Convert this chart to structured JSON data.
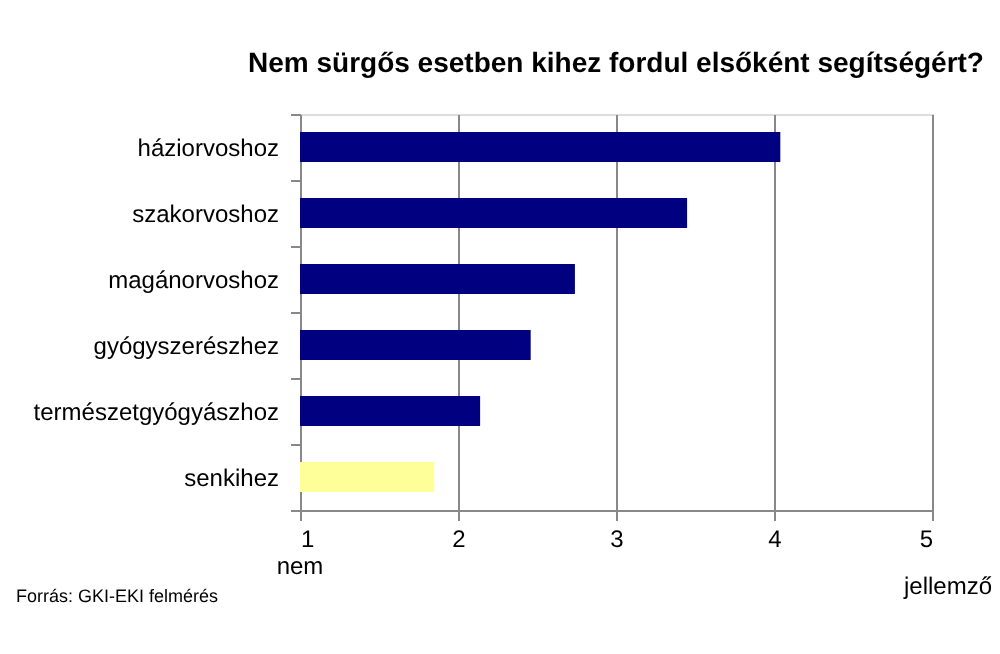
{
  "chart_data": {
    "type": "bar",
    "orientation": "horizontal",
    "title": "Nem sürgős esetben kihez fordul elsőként segítségért?",
    "categories": [
      "háziorvoshoz",
      "szakorvoshoz",
      "magánorvoshoz",
      "gyógyszerészhez",
      "természetgyógyászhoz",
      "senkihez"
    ],
    "values": [
      4.04,
      3.45,
      2.74,
      2.46,
      2.14,
      1.85
    ],
    "colors": [
      "#000080",
      "#000080",
      "#000080",
      "#000080",
      "#000080",
      "#ffff99"
    ],
    "xlim": [
      1,
      5
    ],
    "xticks": [
      1,
      2,
      3,
      4,
      5
    ],
    "grid": "x",
    "annotations": [
      "nem",
      "jellemző",
      "Forrás: GKI-EKI felmérés"
    ]
  }
}
